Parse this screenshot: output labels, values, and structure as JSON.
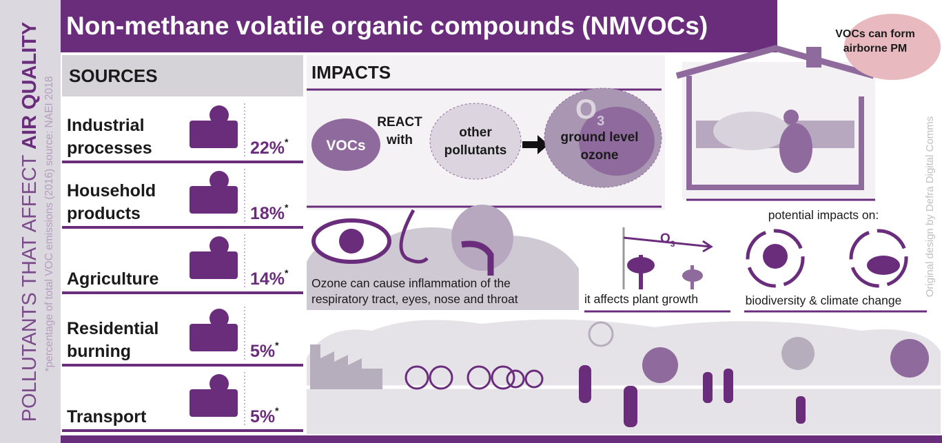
{
  "side": {
    "title_normal": "POLLUTANTS THAT AFFECT ",
    "title_bold": "AIR QUALITY",
    "note": "*percentage of total VOC emissions (2016) source: NAEI 2018"
  },
  "header": {
    "title": "Non-methane volatile organic compounds (NMVOCs)"
  },
  "callout": {
    "lines": [
      "VOCs can form",
      "airborne PM"
    ]
  },
  "sources": {
    "heading": "SOURCES",
    "footnote_mark": "*",
    "items": [
      {
        "lines": [
          "Industrial",
          "processes"
        ],
        "share": "22%"
      },
      {
        "lines": [
          "Household",
          "products"
        ],
        "share": "18%"
      },
      {
        "lines": [
          "Agriculture"
        ],
        "share": "14%"
      },
      {
        "lines": [
          "Residential",
          "burning"
        ],
        "share": "5%"
      },
      {
        "lines": [
          "Transport"
        ],
        "share": "5%"
      }
    ]
  },
  "impacts": {
    "heading": "IMPACTS",
    "reaction": {
      "vocs": "VOCs",
      "react": [
        "REACT",
        "with"
      ],
      "other": [
        "other",
        "pollutants"
      ],
      "ozone_symbol": "O",
      "ozone_sub": "3",
      "result": [
        "ground level",
        "ozone"
      ]
    },
    "health": [
      "Ozone can cause inflammation of the",
      "respiratory tract, eyes, nose and throat"
    ],
    "plants": {
      "symbol": "O",
      "sub": "3",
      "caption": "it affects plant growth"
    },
    "environment": {
      "intro": "potential impacts on:",
      "caption": "biodiversity & climate change"
    }
  },
  "credit": "Original design by Defra Digital Comms"
}
